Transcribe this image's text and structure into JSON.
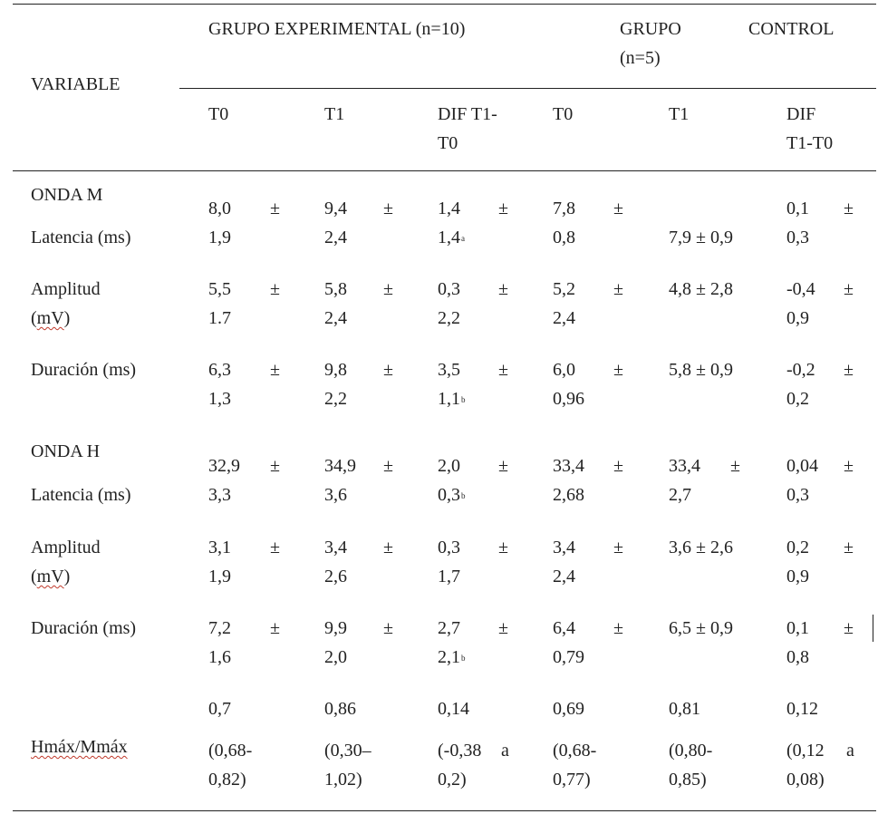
{
  "header": {
    "variable": "VARIABLE",
    "exp_group": "GRUPO EXPERIMENTAL (n=10)",
    "ctrl_group_word1": "GRUPO",
    "ctrl_group_word2": "CONTROL",
    "ctrl_group_n": "(n=5)",
    "cols": {
      "t0": "T0",
      "t1": "T1",
      "dif_l1": "DIF T1-",
      "dif_l2": "T0",
      "c_t0": "T0",
      "c_t1": "T1",
      "c_dif_l1": "DIF",
      "c_dif_l2": "T1-T0"
    }
  },
  "sections": {
    "onda_m": "ONDA M",
    "onda_h": "ONDA H"
  },
  "rows": {
    "m_lat": {
      "label": "Latencia (ms)",
      "c1": [
        "8,0",
        "1,9"
      ],
      "c2": [
        "9,4",
        "2,4"
      ],
      "c3": [
        "1,4",
        "1,4",
        "a"
      ],
      "c4": [
        "7,8",
        "0,8"
      ],
      "c5": "7,9 ± 0,9",
      "c6": [
        "0,1",
        "0,3"
      ]
    },
    "m_amp": {
      "label_l1": "Amplitud",
      "label_l2": "mV",
      "c1": [
        "5,5",
        "1.7"
      ],
      "c2": [
        "5,8",
        "2,4"
      ],
      "c3": [
        "0,3",
        "2,2"
      ],
      "c4": [
        "5,2",
        "2,4"
      ],
      "c5": "4,8 ± 2,8",
      "c6": [
        "-0,4",
        "0,9"
      ]
    },
    "m_dur": {
      "label": "Duración (ms)",
      "c1": [
        "6,3",
        "1,3"
      ],
      "c2": [
        "9,8",
        "2,2"
      ],
      "c3": [
        "3,5",
        "1,1",
        "b"
      ],
      "c4": [
        "6,0",
        "0,96"
      ],
      "c5": "5,8 ± 0,9",
      "c6": [
        "-0,2",
        "0,2"
      ]
    },
    "h_lat": {
      "label": "Latencia (ms)",
      "c1": [
        "32,9",
        "3,3"
      ],
      "c2": [
        "34,9",
        "3,6"
      ],
      "c3": [
        "2,0",
        "0,3",
        "b"
      ],
      "c4": [
        "33,4",
        "2,68"
      ],
      "c5": [
        "33,4",
        "2,7"
      ],
      "c6": [
        "0,04",
        "0,3"
      ]
    },
    "h_amp": {
      "label_l1": "Amplitud",
      "label_l2": "mV",
      "c1": [
        "3,1",
        "1,9"
      ],
      "c2": [
        "3,4",
        "2,6"
      ],
      "c3": [
        "0,3",
        "1,7"
      ],
      "c4": [
        "3,4",
        "2,4"
      ],
      "c5": "3,6 ± 2,6",
      "c6": [
        "0,2",
        "0,9"
      ]
    },
    "h_dur": {
      "label": "Duración (ms)",
      "c1": [
        "7,2",
        "1,6"
      ],
      "c2": [
        "9,9",
        "2,0"
      ],
      "c3": [
        "2,7",
        "2,1",
        "b"
      ],
      "c4": [
        "6,4",
        "0,79"
      ],
      "c5": "6,5 ± 0,9",
      "c6": [
        "0,1",
        "0,8"
      ]
    },
    "ratio": {
      "label": "Hmáx/Mmáx",
      "means": [
        "0,7",
        "0,86",
        "0,14",
        "0,69",
        "0,81",
        "0,12"
      ],
      "c1": [
        "(0,68-",
        "0,82)"
      ],
      "c2": [
        "(0,30–",
        "1,02)"
      ],
      "c3": [
        "(-0,38",
        "a",
        "0,2)"
      ],
      "c4": [
        "(0,68-",
        "0,77)"
      ],
      "c5": [
        "(0,80-",
        "0,85)"
      ],
      "c6": [
        "(0,12",
        "a",
        "0,08)"
      ]
    }
  },
  "pm": "±"
}
